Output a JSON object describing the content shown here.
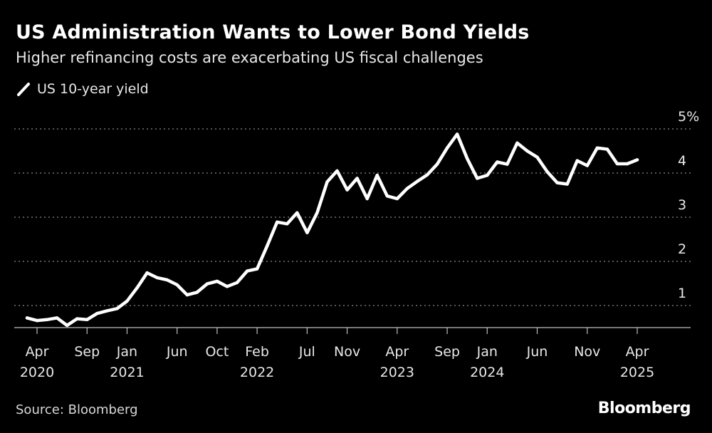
{
  "header": {
    "title": "US Administration Wants to Lower Bond Yields",
    "subtitle": "Higher refinancing costs are exacerbating US fiscal challenges"
  },
  "legend": {
    "series_label": "US 10-year yield"
  },
  "footer": {
    "source": "Source: Bloomberg",
    "brand": "Bloomberg"
  },
  "colors": {
    "background": "#000000",
    "line": "#ffffff",
    "grid": "#8a8a8a",
    "text": "#e8e8e8"
  },
  "chart_data": {
    "type": "line",
    "title": "US Administration Wants to Lower Bond Yields",
    "subtitle": "Higher refinancing costs are exacerbating US fiscal challenges",
    "xlabel": "",
    "ylabel": "",
    "ylim": [
      0.5,
      5
    ],
    "y_ticks": [
      {
        "value": 5,
        "label": "5%"
      },
      {
        "value": 4,
        "label": "4"
      },
      {
        "value": 3,
        "label": "3"
      },
      {
        "value": 2,
        "label": "2"
      },
      {
        "value": 1,
        "label": "1"
      }
    ],
    "x_range": [
      "2020-03",
      "2025-07"
    ],
    "x_ticks": [
      {
        "date": "2020-04",
        "label": "Apr",
        "year": "2020"
      },
      {
        "date": "2020-09",
        "label": "Sep",
        "year": ""
      },
      {
        "date": "2021-01",
        "label": "Jan",
        "year": "2021"
      },
      {
        "date": "2021-06",
        "label": "Jun",
        "year": ""
      },
      {
        "date": "2021-10",
        "label": "Oct",
        "year": ""
      },
      {
        "date": "2022-02",
        "label": "Feb",
        "year": "2022"
      },
      {
        "date": "2022-07",
        "label": "Jul",
        "year": ""
      },
      {
        "date": "2022-11",
        "label": "Nov",
        "year": ""
      },
      {
        "date": "2023-04",
        "label": "Apr",
        "year": "2023"
      },
      {
        "date": "2023-09",
        "label": "Sep",
        "year": ""
      },
      {
        "date": "2024-01",
        "label": "Jan",
        "year": "2024"
      },
      {
        "date": "2024-06",
        "label": "Jun",
        "year": ""
      },
      {
        "date": "2024-11",
        "label": "Nov",
        "year": ""
      },
      {
        "date": "2025-04",
        "label": "Apr",
        "year": "2025"
      }
    ],
    "grid": true,
    "series": [
      {
        "name": "US 10-year yield",
        "x": [
          "2020-03",
          "2020-04",
          "2020-05",
          "2020-06",
          "2020-07",
          "2020-08",
          "2020-09",
          "2020-10",
          "2020-11",
          "2020-12",
          "2021-01",
          "2021-02",
          "2021-03",
          "2021-04",
          "2021-05",
          "2021-06",
          "2021-07",
          "2021-08",
          "2021-09",
          "2021-10",
          "2021-11",
          "2021-12",
          "2022-01",
          "2022-02",
          "2022-03",
          "2022-04",
          "2022-05",
          "2022-06",
          "2022-07",
          "2022-08",
          "2022-09",
          "2022-10",
          "2022-11",
          "2022-12",
          "2023-01",
          "2023-02",
          "2023-03",
          "2023-04",
          "2023-05",
          "2023-06",
          "2023-07",
          "2023-08",
          "2023-09",
          "2023-10",
          "2023-11",
          "2023-12",
          "2024-01",
          "2024-02",
          "2024-03",
          "2024-04",
          "2024-05",
          "2024-06",
          "2024-07",
          "2024-08",
          "2024-09",
          "2024-10",
          "2024-11",
          "2024-12",
          "2025-01",
          "2025-02",
          "2025-03",
          "2025-04"
        ],
        "values": [
          0.72,
          0.66,
          0.68,
          0.72,
          0.55,
          0.7,
          0.68,
          0.82,
          0.88,
          0.93,
          1.1,
          1.4,
          1.74,
          1.63,
          1.58,
          1.47,
          1.24,
          1.3,
          1.49,
          1.55,
          1.43,
          1.52,
          1.78,
          1.83,
          2.35,
          2.89,
          2.85,
          3.1,
          2.65,
          3.1,
          3.8,
          4.05,
          3.62,
          3.88,
          3.42,
          3.95,
          3.48,
          3.42,
          3.65,
          3.81,
          3.96,
          4.2,
          4.57,
          4.88,
          4.33,
          3.88,
          3.95,
          4.25,
          4.2,
          4.68,
          4.5,
          4.36,
          4.03,
          3.78,
          3.75,
          4.28,
          4.17,
          4.57,
          4.54,
          4.21,
          4.21,
          4.3
        ]
      }
    ]
  }
}
